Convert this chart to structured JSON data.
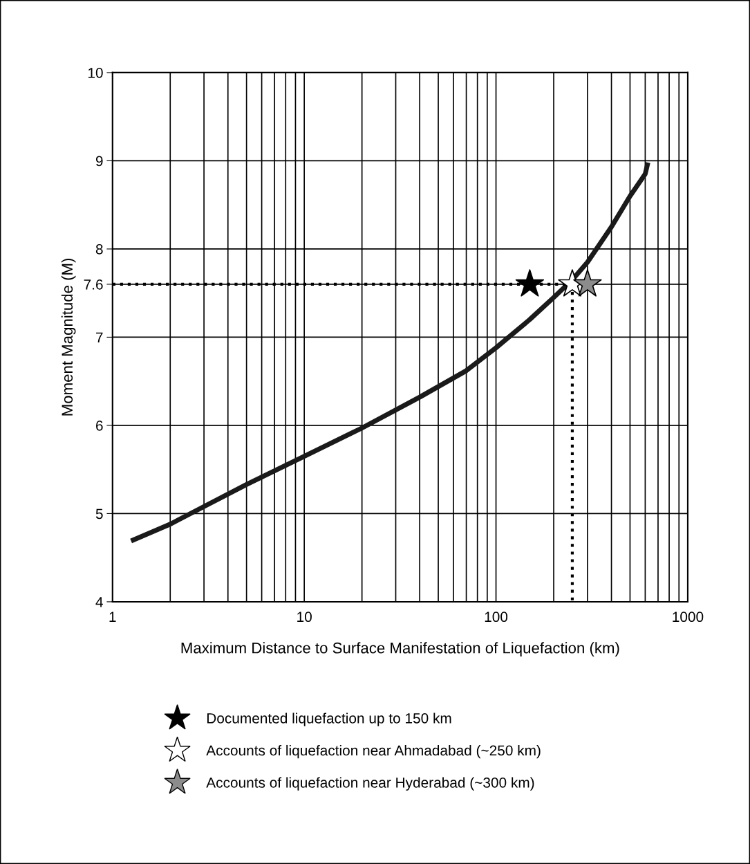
{
  "chart_data": {
    "type": "line",
    "xlabel": "Maximum Distance to Surface Manifestation of Liquefaction (km)",
    "ylabel": "Moment Magnitude (M)",
    "log": "x",
    "xlim": [
      1,
      1000
    ],
    "ylim": [
      4,
      10
    ],
    "xticks": [
      1,
      {
        "value": 2,
        "label": null
      },
      {
        "value": 3,
        "label": null
      },
      {
        "value": 4,
        "label": null
      },
      {
        "value": 5,
        "label": null
      },
      {
        "value": 6,
        "label": null
      },
      {
        "value": 7,
        "label": null
      },
      {
        "value": 8,
        "label": null
      },
      {
        "value": 9,
        "label": null
      },
      10,
      {
        "value": 20,
        "label": null
      },
      {
        "value": 30,
        "label": null
      },
      {
        "value": 40,
        "label": null
      },
      {
        "value": 50,
        "label": null
      },
      {
        "value": 60,
        "label": null
      },
      {
        "value": 70,
        "label": null
      },
      {
        "value": 80,
        "label": null
      },
      {
        "value": 90,
        "label": null
      },
      100,
      {
        "value": 200,
        "label": null
      },
      {
        "value": 300,
        "label": null
      },
      {
        "value": 400,
        "label": null
      },
      {
        "value": 500,
        "label": null
      },
      {
        "value": 600,
        "label": null
      },
      {
        "value": 700,
        "label": null
      },
      {
        "value": 800,
        "label": null
      },
      {
        "value": 900,
        "label": null
      },
      1000
    ],
    "yticks": [
      4,
      5,
      6,
      7,
      7.6,
      8,
      9,
      10
    ],
    "grid": true,
    "legend": "bottom",
    "series": [
      {
        "color": "#1a1a1a",
        "line_style": "solid",
        "marker": "none",
        "x": [
          1.25,
          2,
          3,
          5,
          10,
          20,
          40,
          70,
          100,
          150,
          200,
          250,
          300,
          400,
          500,
          600,
          620
        ],
        "values": [
          4.69,
          4.88,
          5.08,
          5.33,
          5.65,
          5.97,
          6.32,
          6.62,
          6.88,
          7.2,
          7.45,
          7.65,
          7.85,
          8.25,
          8.6,
          8.85,
          8.98
        ]
      },
      {
        "color": "#000000",
        "line_style": "dotted",
        "marker": "none",
        "x": [
          1,
          250
        ],
        "values": [
          7.6,
          7.6
        ]
      },
      {
        "color": "#000000",
        "line_style": "dotted",
        "marker": "none",
        "x": [
          250,
          250
        ],
        "values": [
          7.6,
          4
        ]
      },
      {
        "type": "scatter",
        "name": "Documented liquefaction up to 150 km",
        "color": "#000000",
        "marker": "star",
        "x": [
          150
        ],
        "values": [
          7.6
        ]
      },
      {
        "type": "scatter",
        "name": "Accounts of liquefaction near Ahmadabad (~250 km)",
        "color": "#ffffff",
        "marker": "star",
        "x": [
          250
        ],
        "values": [
          7.6
        ]
      },
      {
        "type": "scatter",
        "name": "Accounts of liquefaction near Hyderabad (~300 km)",
        "color": "#8c8c8c",
        "marker": "star",
        "x": [
          300
        ],
        "values": [
          7.6
        ]
      }
    ]
  }
}
